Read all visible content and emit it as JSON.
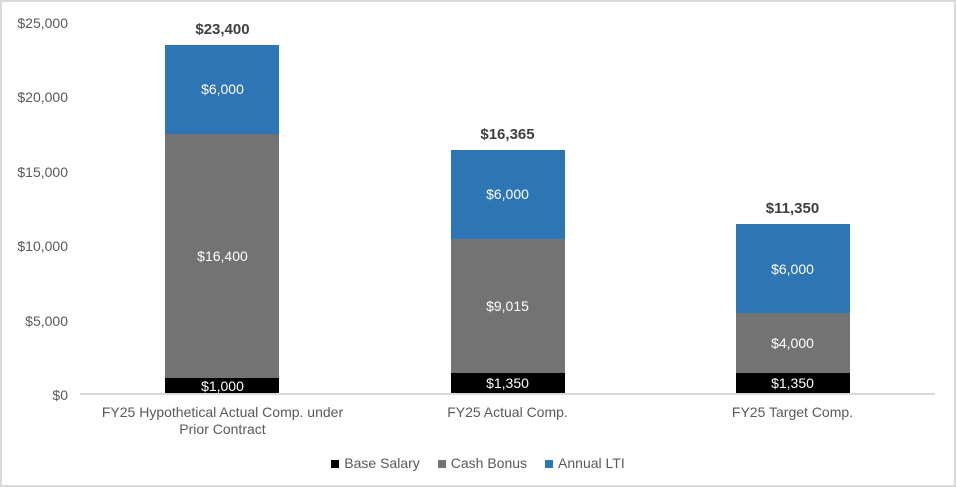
{
  "chart_data": {
    "type": "bar",
    "stacked": true,
    "title": "",
    "xlabel": "",
    "ylabel": "",
    "grid": false,
    "legend_position": "bottom",
    "ylim": [
      0,
      25000
    ],
    "categories": [
      "FY25 Hypothetical Actual Comp. under Prior Contract",
      "FY25 Actual Comp.",
      "FY25 Target Comp."
    ],
    "category_label_lines": [
      [
        "FY25 Hypothetical Actual Comp. under",
        "Prior Contract"
      ],
      [
        "FY25 Actual Comp."
      ],
      [
        "FY25 Target Comp."
      ]
    ],
    "series": [
      {
        "name": "Base Salary",
        "color": "#000000",
        "values": [
          1000,
          1350,
          1350
        ],
        "labels": [
          "$1,000",
          "$1,350",
          "$1,350"
        ]
      },
      {
        "name": "Cash Bonus",
        "color": "#737373",
        "values": [
          16400,
          9015,
          4000
        ],
        "labels": [
          "$16,400",
          "$9,015",
          "$4,000"
        ]
      },
      {
        "name": "Annual LTI",
        "color": "#2e75b6",
        "values": [
          6000,
          6000,
          6000
        ],
        "labels": [
          "$6,000",
          "$6,000",
          "$6,000"
        ]
      }
    ],
    "totals": [
      23400,
      16365,
      11350
    ],
    "total_labels": [
      "$23,400",
      "$16,365",
      "$11,350"
    ],
    "yticks": [
      {
        "value": 0,
        "label": "$0"
      },
      {
        "value": 5000,
        "label": "$5,000"
      },
      {
        "value": 10000,
        "label": "$10,000"
      },
      {
        "value": 15000,
        "label": "$15,000"
      },
      {
        "value": 20000,
        "label": "$20,000"
      },
      {
        "value": 25000,
        "label": "$25,000"
      }
    ],
    "legend": [
      {
        "label": "Base Salary",
        "color": "#000000"
      },
      {
        "label": "Cash Bonus",
        "color": "#737373"
      },
      {
        "label": "Annual LTI",
        "color": "#2e75b6"
      }
    ],
    "colors": {
      "axis_line": "#d9d9d9",
      "frame_border": "#d9d9d9",
      "tick_text": "#595959",
      "total_text": "#3f3f3f",
      "segment_text": "#ffffff"
    }
  }
}
